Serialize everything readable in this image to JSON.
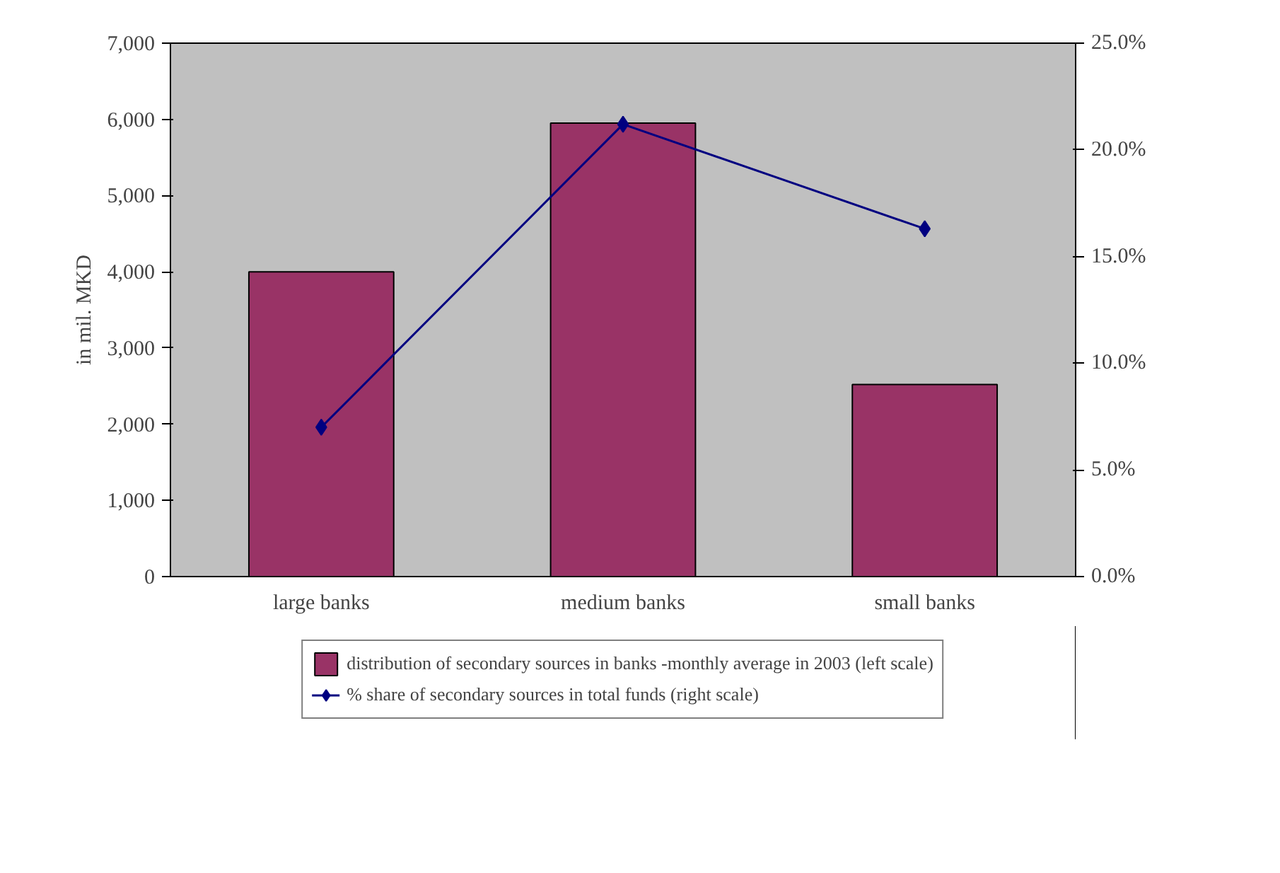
{
  "chart_data": {
    "type": "bar",
    "ylabel": "in mil. MKD",
    "categories": [
      "large banks",
      "medium banks",
      "small banks"
    ],
    "series": [
      {
        "name": "distribution of secondary sources in banks -monthly average in 2003 (left scale)",
        "color": "#993366",
        "values": [
          4000,
          5950,
          2520
        ]
      },
      {
        "name": "% share of secondary sources in total funds (right scale)",
        "type": "line",
        "axis": "y2",
        "color": "#000080",
        "values": [
          7.0,
          21.2,
          16.3
        ]
      }
    ],
    "ylim": [
      0,
      7000
    ],
    "yticks": [
      {
        "value": 0,
        "label": "0"
      },
      {
        "value": 1000,
        "label": "1,000"
      },
      {
        "value": 2000,
        "label": "2,000"
      },
      {
        "value": 3000,
        "label": "3,000"
      },
      {
        "value": 4000,
        "label": "4,000"
      },
      {
        "value": 5000,
        "label": "5,000"
      },
      {
        "value": 6000,
        "label": "6,000"
      },
      {
        "value": 7000,
        "label": "7,000"
      }
    ],
    "y2lim": [
      0,
      25
    ],
    "y2ticks": [
      {
        "value": 0,
        "label": "0.0%"
      },
      {
        "value": 5,
        "label": "5.0%"
      },
      {
        "value": 10,
        "label": "10.0%"
      },
      {
        "value": 15,
        "label": "15.0%"
      },
      {
        "value": 20,
        "label": "20.0%"
      },
      {
        "value": 25,
        "label": "25.0%"
      }
    ],
    "marker": "diamond",
    "line_style": "solid",
    "grid": false,
    "legend": "bottom"
  }
}
